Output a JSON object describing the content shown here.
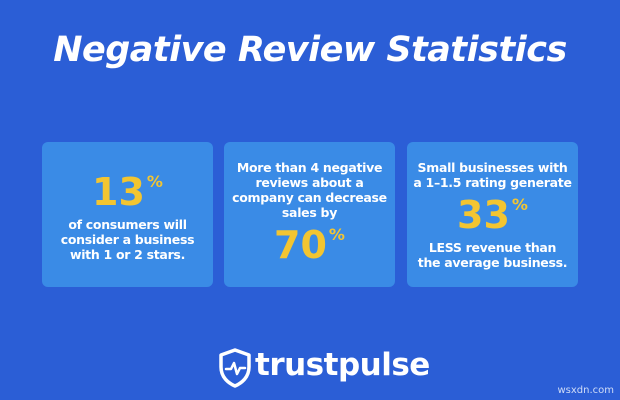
{
  "title": "Negative Review Statistics",
  "cards": [
    {
      "top_lines": [],
      "stat": "13",
      "unit": "%",
      "bottom_lines": [
        "of consumers will",
        "consider a business",
        "with 1 or 2 stars."
      ]
    },
    {
      "top_lines": [
        "More than 4 negative",
        "reviews about a",
        "company can decrease",
        "sales by"
      ],
      "stat": "70",
      "unit": "%",
      "bottom_lines": []
    },
    {
      "top_lines": [
        "Small businesses with",
        "a 1–1.5 rating generate"
      ],
      "stat": "33",
      "unit": "%",
      "bottom_lines": [
        "LESS revenue than",
        "the average business."
      ]
    }
  ],
  "logo": "trustpulse",
  "watermark": "wsxdn.com"
}
